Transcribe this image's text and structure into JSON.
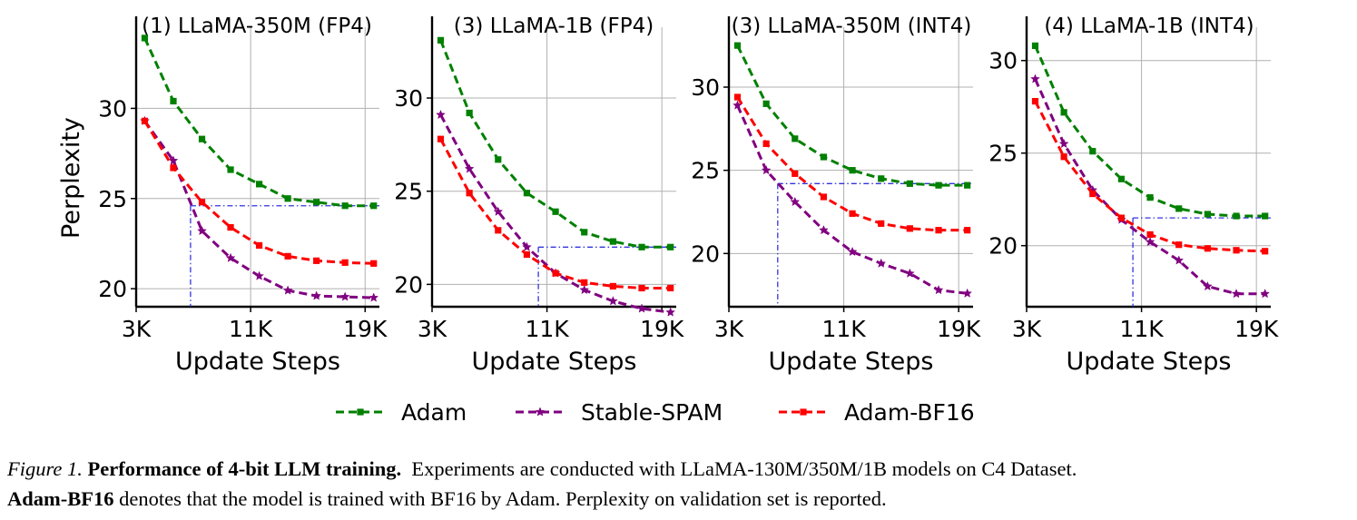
{
  "colors": {
    "Adam": "#008000",
    "Stable-SPAM": "#800080",
    "Adam-BF16": "#ff0000",
    "reference_lines": "#3333dd",
    "grid": "#b0b0b0"
  },
  "legend": {
    "placement": "bottom-center",
    "items": [
      "Adam",
      "Stable-SPAM",
      "Adam-BF16"
    ]
  },
  "chart_data": [
    {
      "type": "line",
      "title": "(1) LLaMA-350M (FP4)",
      "xlabel": "Update Steps",
      "ylabel": "Perplexity",
      "xlim": [
        3000,
        20000
      ],
      "ylim": [
        19,
        34.5
      ],
      "xticks": [
        3000,
        11000,
        19000
      ],
      "xtick_labels": [
        "3K",
        "11K",
        "19K"
      ],
      "yticks": [
        20,
        25,
        30
      ],
      "ytick_labels": [
        "20",
        "25",
        "30"
      ],
      "grid": true,
      "x": [
        3600,
        5600,
        7600,
        9600,
        11600,
        13600,
        15600,
        17600,
        19600
      ],
      "series": [
        {
          "name": "Adam",
          "marker": "square",
          "values": [
            33.9,
            30.4,
            28.3,
            26.6,
            25.8,
            25.0,
            24.8,
            24.6,
            24.6
          ]
        },
        {
          "name": "Stable-SPAM",
          "marker": "star",
          "values": [
            29.3,
            27.1,
            23.2,
            21.7,
            20.7,
            19.9,
            19.6,
            19.55,
            19.5
          ]
        },
        {
          "name": "Adam-BF16",
          "marker": "square",
          "values": [
            29.3,
            26.7,
            24.8,
            23.4,
            22.4,
            21.8,
            21.55,
            21.45,
            21.4
          ]
        }
      ],
      "reference": {
        "x": 6800,
        "y": 24.6
      }
    },
    {
      "type": "line",
      "title": "(3) LLaMA-1B (FP4)",
      "xlabel": "Update Steps",
      "ylabel": "",
      "xlim": [
        3000,
        20000
      ],
      "ylim": [
        18.8,
        33.8
      ],
      "xticks": [
        3000,
        11000,
        19000
      ],
      "xtick_labels": [
        "3K",
        "11K",
        "19K"
      ],
      "yticks": [
        20,
        25,
        30
      ],
      "ytick_labels": [
        "20",
        "25",
        "30"
      ],
      "grid": true,
      "x": [
        3600,
        5600,
        7600,
        9600,
        11600,
        13600,
        15600,
        17600,
        19600
      ],
      "series": [
        {
          "name": "Adam",
          "marker": "square",
          "values": [
            33.1,
            29.2,
            26.7,
            24.9,
            23.9,
            22.8,
            22.3,
            22.0,
            22.0
          ]
        },
        {
          "name": "Stable-SPAM",
          "marker": "star",
          "values": [
            29.1,
            26.2,
            23.9,
            22.0,
            20.6,
            19.7,
            19.1,
            18.7,
            18.5
          ]
        },
        {
          "name": "Adam-BF16",
          "marker": "square",
          "values": [
            27.8,
            24.9,
            22.9,
            21.6,
            20.6,
            20.1,
            19.9,
            19.8,
            19.8
          ]
        }
      ],
      "reference": {
        "x": 10400,
        "y": 22.0
      }
    },
    {
      "type": "line",
      "title": "(3) LLaMA-350M (INT4)",
      "xlabel": "Update Steps",
      "ylabel": "",
      "xlim": [
        3000,
        20000
      ],
      "ylim": [
        16.8,
        33.6
      ],
      "xticks": [
        3000,
        11000,
        19000
      ],
      "xtick_labels": [
        "3K",
        "11K",
        "19K"
      ],
      "yticks": [
        20,
        25,
        30
      ],
      "ytick_labels": [
        "20",
        "25",
        "30"
      ],
      "grid": true,
      "x": [
        3600,
        5600,
        7600,
        9600,
        11600,
        13600,
        15600,
        17600,
        19600
      ],
      "series": [
        {
          "name": "Adam",
          "marker": "square",
          "values": [
            32.5,
            29.0,
            26.9,
            25.8,
            25.0,
            24.5,
            24.2,
            24.1,
            24.1
          ]
        },
        {
          "name": "Stable-SPAM",
          "marker": "star",
          "values": [
            28.9,
            25.0,
            23.1,
            21.4,
            20.1,
            19.4,
            18.8,
            17.8,
            17.6
          ]
        },
        {
          "name": "Adam-BF16",
          "marker": "square",
          "values": [
            29.4,
            26.6,
            24.8,
            23.4,
            22.4,
            21.8,
            21.5,
            21.4,
            21.4
          ]
        }
      ],
      "reference": {
        "x": 6400,
        "y": 24.2
      }
    },
    {
      "type": "line",
      "title": "(4) LLaMA-1B (INT4)",
      "xlabel": "Update Steps",
      "ylabel": "",
      "xlim": [
        3000,
        20000
      ],
      "ylim": [
        16.7,
        31.8
      ],
      "xticks": [
        3000,
        11000,
        19000
      ],
      "xtick_labels": [
        "3K",
        "11K",
        "19K"
      ],
      "yticks": [
        20,
        25,
        30
      ],
      "ytick_labels": [
        "20",
        "25",
        "30"
      ],
      "grid": true,
      "x": [
        3600,
        5600,
        7600,
        9600,
        11600,
        13600,
        15600,
        17600,
        19600
      ],
      "series": [
        {
          "name": "Adam",
          "marker": "square",
          "values": [
            30.8,
            27.2,
            25.1,
            23.6,
            22.6,
            22.0,
            21.7,
            21.6,
            21.6
          ]
        },
        {
          "name": "Stable-SPAM",
          "marker": "star",
          "values": [
            29.0,
            25.5,
            23.0,
            21.4,
            20.2,
            19.2,
            17.8,
            17.4,
            17.4
          ]
        },
        {
          "name": "Adam-BF16",
          "marker": "square",
          "values": [
            27.8,
            24.8,
            22.8,
            21.5,
            20.6,
            20.05,
            19.85,
            19.75,
            19.7
          ]
        }
      ],
      "reference": {
        "x": 10400,
        "y": 21.5
      }
    }
  ],
  "caption": {
    "figure_label": "Figure 1.",
    "bold_title": "Performance of 4-bit LLM training.",
    "text1": "Experiments are conducted with LLaMA-130M/350M/1B models on C4 Dataset.",
    "bold_term": "Adam-BF16",
    "text2": "denotes that the model is trained with BF16 by Adam. Perplexity on validation set is reported."
  }
}
